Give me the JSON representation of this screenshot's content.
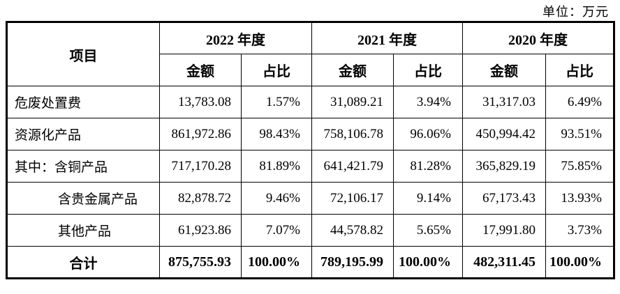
{
  "unit_label": "单位：万元",
  "table": {
    "item_header": "项目",
    "year_groups": [
      {
        "year": "2022 年度",
        "amount_label": "金额",
        "ratio_label": "占比"
      },
      {
        "year": "2021 年度",
        "amount_label": "金额",
        "ratio_label": "占比"
      },
      {
        "year": "2020 年度",
        "amount_label": "金额",
        "ratio_label": "占比"
      }
    ],
    "rows": [
      {
        "label": "危废处置费",
        "indent": false,
        "total": false,
        "values": [
          "13,783.08",
          "1.57%",
          "31,089.21",
          "3.94%",
          "31,317.03",
          "6.49%"
        ]
      },
      {
        "label": "资源化产品",
        "indent": false,
        "total": false,
        "values": [
          "861,972.86",
          "98.43%",
          "758,106.78",
          "96.06%",
          "450,994.42",
          "93.51%"
        ]
      },
      {
        "label": "其中：含铜产品",
        "indent": false,
        "total": false,
        "values": [
          "717,170.28",
          "81.89%",
          "641,421.79",
          "81.28%",
          "365,829.19",
          "75.85%"
        ]
      },
      {
        "label": "含贵金属产品",
        "indent": true,
        "total": false,
        "values": [
          "82,878.72",
          "9.46%",
          "72,106.17",
          "9.14%",
          "67,173.43",
          "13.93%"
        ]
      },
      {
        "label": "其他产品",
        "indent": true,
        "total": false,
        "values": [
          "61,923.86",
          "7.07%",
          "44,578.82",
          "5.65%",
          "17,991.80",
          "3.73%"
        ]
      },
      {
        "label": "合计",
        "indent": false,
        "total": true,
        "values": [
          "875,755.93",
          "100.00%",
          "789,195.99",
          "100.00%",
          "482,311.45",
          "100.00%"
        ]
      }
    ]
  },
  "colors": {
    "text": "#000000",
    "border": "#000000",
    "background": "#ffffff"
  }
}
